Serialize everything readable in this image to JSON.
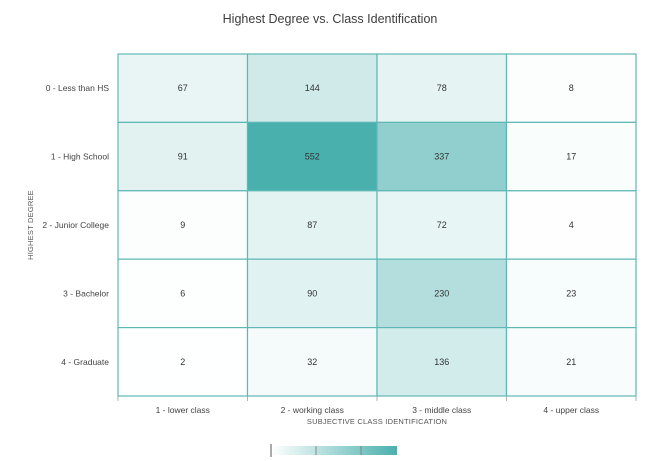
{
  "chart_data": {
    "type": "heatmap",
    "title": "Highest Degree vs. Class Identification",
    "xlabel": "SUBJECTIVE CLASS IDENTIFICATION",
    "ylabel": "HIGHEST DEGREE",
    "x_categories": [
      "1 - lower class",
      "2 - working class",
      "3 - middle class",
      "4 - upper class"
    ],
    "y_categories": [
      "0 - Less than HS",
      "1 - High School",
      "2 - Junior College",
      "3 - Bachelor",
      "4 - Graduate"
    ],
    "values": [
      [
        67,
        144,
        78,
        8
      ],
      [
        91,
        552,
        337,
        17
      ],
      [
        9,
        87,
        72,
        4
      ],
      [
        6,
        90,
        230,
        23
      ],
      [
        2,
        32,
        136,
        21
      ]
    ],
    "color_range": [
      "#ffffff",
      "#4ab0ad"
    ],
    "value_range": [
      0,
      552
    ],
    "legend": "bottom-center"
  }
}
